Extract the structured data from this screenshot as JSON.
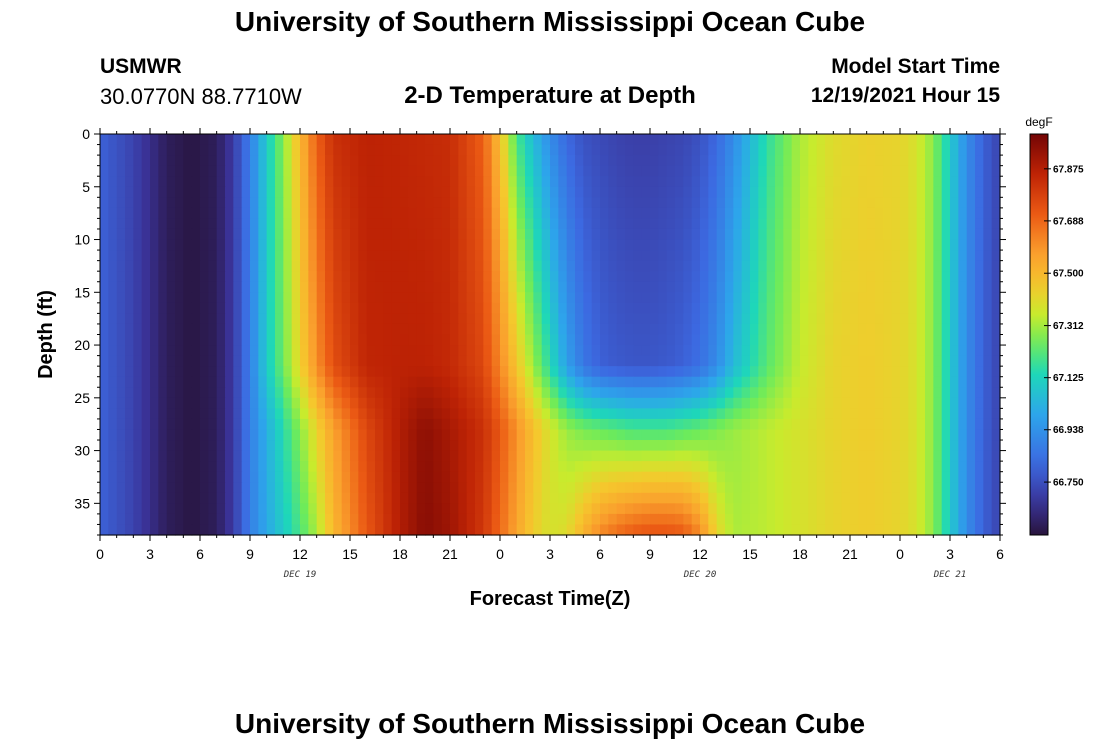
{
  "header": {
    "title": "University of Southern Mississippi Ocean Cube",
    "station": "USMWR",
    "coords": "30.0770N  88.7710W",
    "plot_title": "2-D Temperature at Depth",
    "start_label": "Model Start Time",
    "start_value": "12/19/2021 Hour 15"
  },
  "footer": {
    "title": "University of Southern Mississippi Ocean Cube"
  },
  "chart_data": {
    "type": "heatmap",
    "title": "2-D Temperature at Depth",
    "xlabel": "Forecast Time(Z)",
    "ylabel": "Depth (ft)",
    "x_ticks": [
      "0",
      "3",
      "6",
      "9",
      "12",
      "15",
      "18",
      "21",
      "0",
      "3",
      "6",
      "9",
      "12",
      "15",
      "18",
      "21",
      "0",
      "3",
      "6"
    ],
    "date_labels": [
      {
        "label": "DEC 19",
        "hour": 12
      },
      {
        "label": "DEC 20",
        "hour": 36
      },
      {
        "label": "DEC 21",
        "hour": 51
      }
    ],
    "x_range_hours": [
      0,
      54
    ],
    "y_ticks": [
      0,
      5,
      10,
      15,
      20,
      25,
      30,
      35
    ],
    "y_range_ft": [
      0,
      38
    ],
    "colorbar": {
      "unit": "degF",
      "min": 66.56,
      "max": 68.0,
      "ticks": [
        "67.875",
        "67.688",
        "67.500",
        "67.312",
        "67.125",
        "66.938",
        "66.750"
      ]
    },
    "depths_ft": [
      0,
      22,
      28,
      38
    ],
    "hours": [
      0,
      2,
      4,
      5.5,
      7,
      8,
      9,
      10,
      11,
      12,
      13,
      14,
      16,
      18,
      19.5,
      21,
      23,
      24,
      25,
      26,
      27,
      28,
      29,
      30,
      31,
      32,
      33,
      34,
      35,
      36,
      37,
      38,
      40,
      42,
      44,
      46,
      48,
      49,
      50,
      51,
      52,
      53,
      54
    ],
    "temperature_degF": [
      [
        66.8,
        66.72,
        66.6,
        66.57,
        66.6,
        66.7,
        66.88,
        67.1,
        67.28,
        67.5,
        67.7,
        67.82,
        67.86,
        67.85,
        67.84,
        67.83,
        67.7,
        67.48,
        67.2,
        67.05,
        66.92,
        66.82,
        66.76,
        66.74,
        66.72,
        66.71,
        66.71,
        66.72,
        66.73,
        66.76,
        66.82,
        66.92,
        67.16,
        67.32,
        67.4,
        67.43,
        67.42,
        67.38,
        67.28,
        67.1,
        66.92,
        66.8,
        66.72
      ],
      [
        66.8,
        66.72,
        66.6,
        66.57,
        66.6,
        66.7,
        66.88,
        67.1,
        67.25,
        67.42,
        67.6,
        67.74,
        67.85,
        67.86,
        67.86,
        67.84,
        67.76,
        67.62,
        67.46,
        67.3,
        67.15,
        66.98,
        66.86,
        66.8,
        66.78,
        66.77,
        66.77,
        66.78,
        66.8,
        66.84,
        66.92,
        67.05,
        67.22,
        67.35,
        67.42,
        67.44,
        67.42,
        67.38,
        67.28,
        67.1,
        66.92,
        66.8,
        66.72
      ],
      [
        66.8,
        66.72,
        66.6,
        66.57,
        66.6,
        66.7,
        66.88,
        67.02,
        67.15,
        67.28,
        67.42,
        67.56,
        67.76,
        67.88,
        67.95,
        67.9,
        67.82,
        67.72,
        67.6,
        67.48,
        67.38,
        67.3,
        67.26,
        67.24,
        67.22,
        67.2,
        67.2,
        67.2,
        67.22,
        67.24,
        67.27,
        67.3,
        67.34,
        67.38,
        67.42,
        67.44,
        67.42,
        67.38,
        67.28,
        67.1,
        66.92,
        66.8,
        66.72
      ],
      [
        66.8,
        66.72,
        66.6,
        66.57,
        66.6,
        66.7,
        66.88,
        67.0,
        67.1,
        67.2,
        67.32,
        67.5,
        67.72,
        67.88,
        67.96,
        67.92,
        67.8,
        67.68,
        67.55,
        67.44,
        67.38,
        67.4,
        67.52,
        67.62,
        67.68,
        67.72,
        67.74,
        67.74,
        67.72,
        67.62,
        67.42,
        67.32,
        67.34,
        67.38,
        67.42,
        67.44,
        67.42,
        67.38,
        67.28,
        67.1,
        66.92,
        66.8,
        66.72
      ]
    ]
  }
}
